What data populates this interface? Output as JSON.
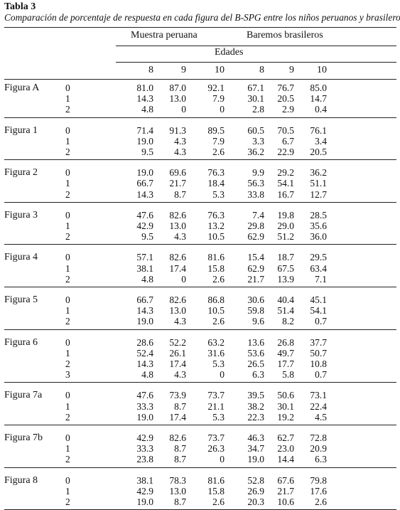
{
  "title": "Tabla 3",
  "caption": "Comparación de porcentaje de respuesta en cada figura del B-SPG entre los niños peruanos y brasileros",
  "headers": {
    "group_peru": "Muestra peruana",
    "group_brazil": "Baremos brasileros",
    "ages_label": "Edades",
    "ages": [
      "8",
      "9",
      "10",
      "8",
      "9",
      "10"
    ]
  },
  "groups": [
    {
      "name": "Figura A",
      "rows": [
        [
          "0",
          "81.0",
          "87.0",
          "92.1",
          "67.1",
          "76.7",
          "85.0"
        ],
        [
          "1",
          "14.3",
          "13.0",
          "7.9",
          "30.1",
          "20.5",
          "14.7"
        ],
        [
          "2",
          "4.8",
          "0",
          "0",
          "2.8",
          "2.9",
          "0.4"
        ]
      ]
    },
    {
      "name": "Figura 1",
      "rows": [
        [
          "0",
          "71.4",
          "91.3",
          "89.5",
          "60.5",
          "70.5",
          "76.1"
        ],
        [
          "1",
          "19.0",
          "4.3",
          "7.9",
          "3.3",
          "6.7",
          "3.4"
        ],
        [
          "2",
          "9.5",
          "4.3",
          "2.6",
          "36.2",
          "22.9",
          "20.5"
        ]
      ]
    },
    {
      "name": "Figura 2",
      "rows": [
        [
          "0",
          "19.0",
          "69.6",
          "76.3",
          "9.9",
          "29.2",
          "36.2"
        ],
        [
          "1",
          "66.7",
          "21.7",
          "18.4",
          "56.3",
          "54.1",
          "51.1"
        ],
        [
          "2",
          "14.3",
          "8.7",
          "5.3",
          "33.8",
          "16.7",
          "12.7"
        ]
      ]
    },
    {
      "name": "Figura 3",
      "rows": [
        [
          "0",
          "47.6",
          "82.6",
          "76.3",
          "7.4",
          "19.8",
          "28.5"
        ],
        [
          "1",
          "42.9",
          "13.0",
          "13.2",
          "29.8",
          "29.0",
          "35.6"
        ],
        [
          "2",
          "9.5",
          "4.3",
          "10.5",
          "62.9",
          "51.2",
          "36.0"
        ]
      ]
    },
    {
      "name": "Figura 4",
      "rows": [
        [
          "0",
          "57.1",
          "82.6",
          "81.6",
          "15.4",
          "18.7",
          "29.5"
        ],
        [
          "1",
          "38.1",
          "17.4",
          "15.8",
          "62.9",
          "67.5",
          "63.4"
        ],
        [
          "2",
          "4.8",
          "0",
          "2.6",
          "21.7",
          "13.9",
          "7.1"
        ]
      ]
    },
    {
      "name": "Figura 5",
      "rows": [
        [
          "0",
          "66.7",
          "82.6",
          "86.8",
          "30.6",
          "40.4",
          "45.1"
        ],
        [
          "1",
          "14.3",
          "13.0",
          "10.5",
          "59.8",
          "51.4",
          "54.1"
        ],
        [
          "2",
          "19.0",
          "4.3",
          "2.6",
          "9.6",
          "8.2",
          "0.7"
        ]
      ]
    },
    {
      "name": "Figura 6",
      "rows": [
        [
          "0",
          "28.6",
          "52.2",
          "63.2",
          "13.6",
          "26.8",
          "37.7"
        ],
        [
          "1",
          "52.4",
          "26.1",
          "31.6",
          "53.6",
          "49.7",
          "50.7"
        ],
        [
          "2",
          "14.3",
          "17.4",
          "5.3",
          "26.5",
          "17.7",
          "10.8"
        ],
        [
          "3",
          "4.8",
          "4.3",
          "0",
          "6.3",
          "5.8",
          "0.7"
        ]
      ]
    },
    {
      "name": "Figura 7a",
      "rows": [
        [
          "0",
          "47.6",
          "73.9",
          "73.7",
          "39.5",
          "50.6",
          "73.1"
        ],
        [
          "1",
          "33.3",
          "8.7",
          "21.1",
          "38.2",
          "30.1",
          "22.4"
        ],
        [
          "2",
          "19.0",
          "17.4",
          "5.3",
          "22.3",
          "19.2",
          "4.5"
        ]
      ]
    },
    {
      "name": "Figura 7b",
      "rows": [
        [
          "0",
          "42.9",
          "82.6",
          "73.7",
          "46.3",
          "62.7",
          "72.8"
        ],
        [
          "1",
          "33.3",
          "8.7",
          "26.3",
          "34.7",
          "23.0",
          "20.9"
        ],
        [
          "2",
          "23.8",
          "8.7",
          "0",
          "19.0",
          "14.4",
          "6.3"
        ]
      ]
    },
    {
      "name": "Figura 8",
      "rows": [
        [
          "0",
          "38.1",
          "78.3",
          "81.6",
          "52.8",
          "67.6",
          "79.8"
        ],
        [
          "1",
          "42.9",
          "13.0",
          "15.8",
          "26.9",
          "21.7",
          "17.6"
        ],
        [
          "2",
          "19.0",
          "8.7",
          "2.6",
          "20.3",
          "10.6",
          "2.6"
        ]
      ]
    }
  ]
}
